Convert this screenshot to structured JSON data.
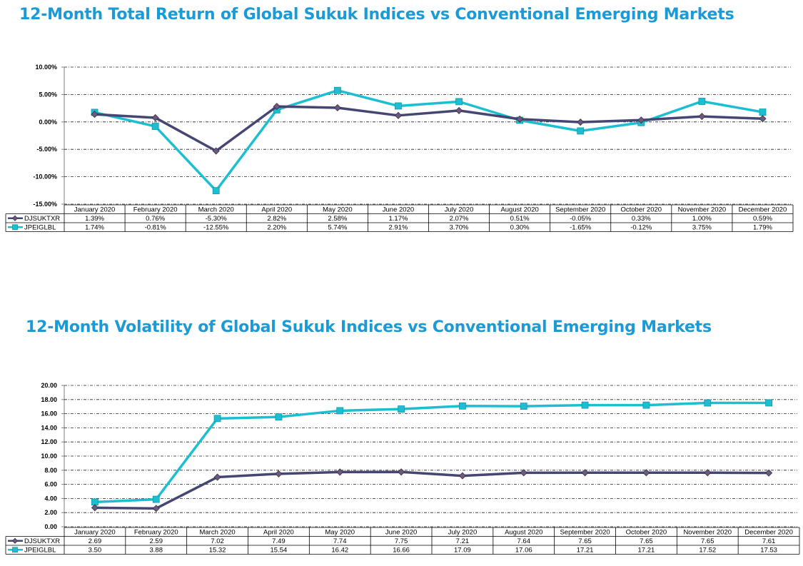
{
  "chart_data": [
    {
      "type": "line",
      "title": "12-Month Total Return of Global Sukuk Indices vs Conventional Emerging Markets",
      "categories": [
        "January 2020",
        "February 2020",
        "March 2020",
        "April 2020",
        "May 2020",
        "June 2020",
        "July 2020",
        "August 2020",
        "September 2020",
        "October 2020",
        "November 2020",
        "December 2020"
      ],
      "yticks": [
        "-15.00%",
        "-10.00%",
        "-5.00%",
        "0.00%",
        "5.00%",
        "10.00%"
      ],
      "ylim": [
        -15,
        10
      ],
      "grid": true,
      "series": [
        {
          "name": "DJSUKTXR",
          "color": "#454672",
          "values": [
            1.39,
            0.76,
            -5.3,
            2.82,
            2.58,
            1.17,
            2.07,
            0.51,
            -0.05,
            0.33,
            1.0,
            0.59
          ],
          "labels": [
            "1.39%",
            "0.76%",
            "-5.30%",
            "2.82%",
            "2.58%",
            "1.17%",
            "2.07%",
            "0.51%",
            "-0.05%",
            "0.33%",
            "1.00%",
            "0.59%"
          ]
        },
        {
          "name": "JPEIGLBL",
          "color": "#1cbfd1",
          "values": [
            1.74,
            -0.81,
            -12.55,
            2.2,
            5.74,
            2.91,
            3.7,
            0.3,
            -1.65,
            -0.12,
            3.75,
            1.79
          ],
          "labels": [
            "1.74%",
            "-0.81%",
            "-12.55%",
            "2.20%",
            "5.74%",
            "2.91%",
            "3.70%",
            "0.30%",
            "-1.65%",
            "-0.12%",
            "3.75%",
            "1.79%"
          ]
        }
      ]
    },
    {
      "type": "line",
      "title": "12-Month Volatility of Global Sukuk Indices vs Conventional Emerging Markets",
      "categories": [
        "January 2020",
        "February 2020",
        "March 2020",
        "April 2020",
        "May 2020",
        "June 2020",
        "July 2020",
        "August 2020",
        "September 2020",
        "October 2020",
        "November 2020",
        "December 2020"
      ],
      "yticks": [
        "0.00",
        "2.00",
        "4.00",
        "6.00",
        "8.00",
        "10.00",
        "12.00",
        "14.00",
        "16.00",
        "18.00",
        "20.00"
      ],
      "ylim": [
        0,
        20
      ],
      "grid": true,
      "series": [
        {
          "name": "DJSUKTXR",
          "color": "#454672",
          "values": [
            2.69,
            2.59,
            7.02,
            7.49,
            7.74,
            7.75,
            7.21,
            7.64,
            7.65,
            7.65,
            7.65,
            7.61
          ],
          "labels": [
            "2.69",
            "2.59",
            "7.02",
            "7.49",
            "7.74",
            "7.75",
            "7.21",
            "7.64",
            "7.65",
            "7.65",
            "7.65",
            "7.61"
          ]
        },
        {
          "name": "JPEIGLBL",
          "color": "#1cbfd1",
          "values": [
            3.5,
            3.88,
            15.32,
            15.54,
            16.42,
            16.66,
            17.09,
            17.06,
            17.21,
            17.21,
            17.52,
            17.53
          ],
          "labels": [
            "3.50",
            "3.88",
            "15.32",
            "15.54",
            "16.42",
            "16.66",
            "17.09",
            "17.06",
            "17.21",
            "17.21",
            "17.52",
            "17.53"
          ]
        }
      ]
    }
  ]
}
